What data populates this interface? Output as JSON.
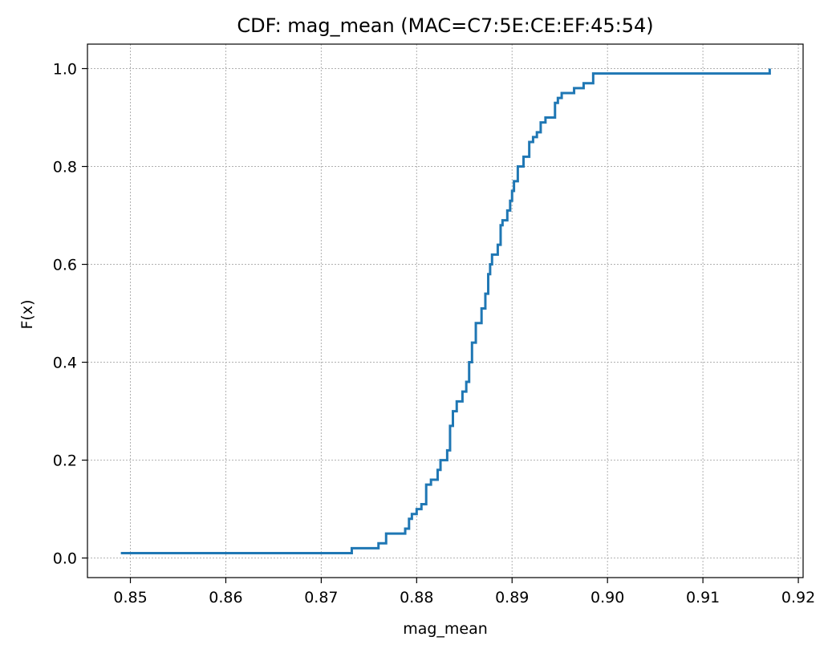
{
  "chart_data": {
    "type": "line",
    "title": "CDF: mag_mean (MAC=C7:5E:CE:EF:45:54)",
    "xlabel": "mag_mean",
    "ylabel": "F(x)",
    "xlim": [
      0.8455,
      0.9205
    ],
    "ylim": [
      -0.04,
      1.05
    ],
    "xticks": [
      "0.85",
      "0.86",
      "0.87",
      "0.88",
      "0.89",
      "0.90",
      "0.91",
      "0.92"
    ],
    "xtick_values": [
      0.85,
      0.86,
      0.87,
      0.88,
      0.89,
      0.9,
      0.91,
      0.92
    ],
    "yticks": [
      "0.0",
      "0.2",
      "0.4",
      "0.6",
      "0.8",
      "1.0"
    ],
    "ytick_values": [
      0.0,
      0.2,
      0.4,
      0.6,
      0.8,
      1.0
    ],
    "grid": true,
    "step": "post",
    "line_color": "#1f77b4",
    "series": [
      {
        "x": [
          0.849,
          0.8732,
          0.876,
          0.8768,
          0.8788,
          0.8792,
          0.8795,
          0.88,
          0.8805,
          0.881,
          0.8815,
          0.8822,
          0.8825,
          0.8832,
          0.8835,
          0.8838,
          0.8842,
          0.8848,
          0.8852,
          0.8855,
          0.8858,
          0.8862,
          0.8868,
          0.8872,
          0.8875,
          0.8877,
          0.8879,
          0.8885,
          0.8888,
          0.889,
          0.8895,
          0.8898,
          0.89,
          0.8902,
          0.8906,
          0.8912,
          0.8918,
          0.8922,
          0.8926,
          0.893,
          0.8935,
          0.8945,
          0.8948,
          0.8952,
          0.8965,
          0.8975,
          0.8985,
          0.917
        ],
        "y": [
          0.01,
          0.02,
          0.03,
          0.05,
          0.06,
          0.08,
          0.09,
          0.1,
          0.11,
          0.15,
          0.16,
          0.18,
          0.2,
          0.22,
          0.27,
          0.3,
          0.32,
          0.34,
          0.36,
          0.4,
          0.44,
          0.48,
          0.51,
          0.54,
          0.58,
          0.6,
          0.62,
          0.64,
          0.68,
          0.69,
          0.71,
          0.73,
          0.75,
          0.77,
          0.8,
          0.82,
          0.85,
          0.86,
          0.87,
          0.89,
          0.9,
          0.93,
          0.94,
          0.95,
          0.96,
          0.97,
          0.99,
          1.0
        ]
      }
    ]
  }
}
